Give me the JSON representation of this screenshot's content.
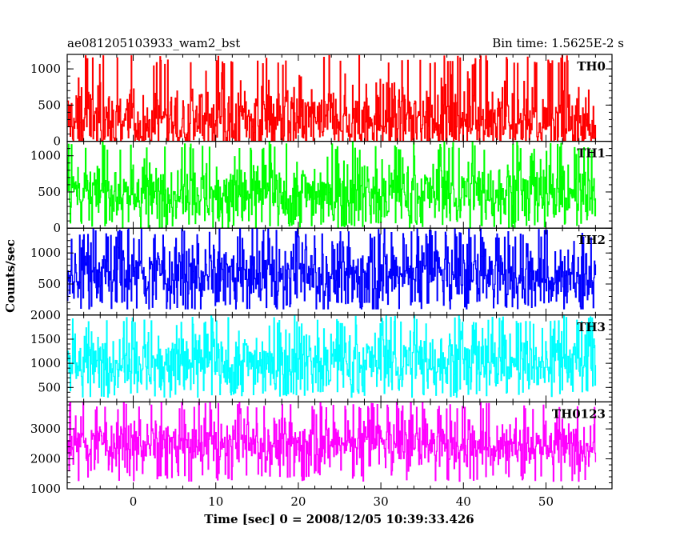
{
  "chart_data": {
    "type": "line",
    "title_left": "ae081205103933_wam2_bst",
    "title_right": "Bin time: 1.5625E-2 s",
    "xlabel": "Time [sec] 0 = 2008/12/05 10:39:33.426",
    "ylabel": "Counts/sec",
    "xlim": [
      -8,
      58
    ],
    "x_data_range": [
      -8,
      56
    ],
    "x_ticks": [
      0,
      10,
      20,
      30,
      40,
      50
    ],
    "grid": false,
    "panels": [
      {
        "name": "TH0",
        "color": "#ff0000",
        "ylim": [
          0,
          1200
        ],
        "y_ticks": [
          0,
          500,
          1000
        ],
        "tick_labels": [
          "0",
          "500",
          "1000"
        ],
        "base": 300,
        "spread": 250,
        "low": 0,
        "high": 1200
      },
      {
        "name": "TH1",
        "color": "#00ff00",
        "ylim": [
          0,
          1200
        ],
        "y_ticks": [
          0,
          500,
          1000
        ],
        "tick_labels": [
          "0",
          "500",
          "1000"
        ],
        "base": 500,
        "spread": 220,
        "low": 0,
        "high": 1200
      },
      {
        "name": "TH2",
        "color": "#0000ff",
        "ylim": [
          0,
          1400
        ],
        "y_ticks": [
          500,
          1000
        ],
        "tick_labels": [
          "500",
          "1000"
        ],
        "base": 650,
        "spread": 280,
        "low": 100,
        "high": 1400
      },
      {
        "name": "TH3",
        "color": "#00ffff",
        "ylim": [
          200,
          2000
        ],
        "y_ticks": [
          500,
          1000,
          1500,
          2000
        ],
        "tick_labels": [
          "500",
          "1000",
          "1500",
          "2000"
        ],
        "base": 1050,
        "spread": 330,
        "low": 300,
        "high": 2000
      },
      {
        "name": "TH0123",
        "color": "#ff00ff",
        "ylim": [
          1000,
          3900
        ],
        "y_ticks": [
          1000,
          2000,
          3000
        ],
        "tick_labels": [
          "1000",
          "2000",
          "3000"
        ],
        "base": 2500,
        "spread": 450,
        "low": 1250,
        "high": 3900
      }
    ]
  }
}
